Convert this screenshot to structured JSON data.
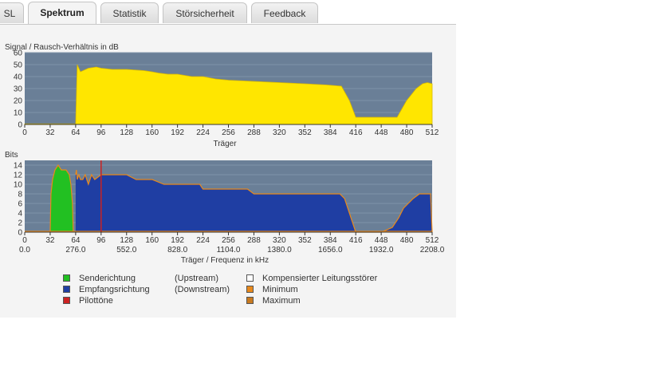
{
  "tabs": [
    {
      "label": "SL",
      "active": false
    },
    {
      "label": "Spektrum",
      "active": true
    },
    {
      "label": "Statistik",
      "active": false
    },
    {
      "label": "Störsicherheit",
      "active": false
    },
    {
      "label": "Feedback",
      "active": false
    }
  ],
  "colors": {
    "plot_bg": "#6a7f97",
    "snr_fill": "#ffe600",
    "upstream": "#22c022",
    "downstream": "#1f3ea3",
    "pilot": "#cc2222",
    "minimum": "#e8891c",
    "maximum": "#c87a20",
    "compensated": "#ffffff"
  },
  "chart_data": [
    {
      "type": "area",
      "title": "Signal / Rausch-Verhältnis in dB",
      "xlabel": "Träger",
      "ylabel": "",
      "xlim": [
        0,
        512
      ],
      "ylim": [
        0,
        60
      ],
      "x_ticks": [
        0,
        32,
        64,
        96,
        128,
        160,
        192,
        224,
        256,
        288,
        320,
        352,
        384,
        416,
        448,
        480,
        512
      ],
      "y_ticks": [
        0,
        10,
        20,
        30,
        40,
        50,
        60
      ],
      "series": [
        {
          "x": [
            0,
            63,
            64,
            66,
            70,
            80,
            90,
            96,
            110,
            128,
            150,
            160,
            168,
            180,
            192,
            210,
            224,
            240,
            256,
            288,
            320,
            352,
            380,
            398,
            408,
            416,
            448,
            468,
            480,
            492,
            500,
            506,
            512
          ],
          "values": [
            0.5,
            0.5,
            0,
            50,
            44,
            47,
            48,
            47,
            46,
            46,
            45,
            44,
            43,
            42,
            42,
            40,
            40,
            38,
            37,
            36,
            35,
            34,
            33,
            32,
            20,
            6,
            6,
            6,
            20,
            30,
            34,
            35,
            34
          ]
        }
      ]
    },
    {
      "type": "area",
      "title": "Bits",
      "xlabel": "Träger / Frequenz in kHz",
      "ylabel": "",
      "xlim": [
        0,
        512
      ],
      "ylim": [
        0,
        15
      ],
      "x_ticks": [
        0,
        32,
        64,
        96,
        128,
        160,
        192,
        224,
        256,
        288,
        320,
        352,
        384,
        416,
        448,
        480,
        512
      ],
      "freq_ticks": [
        "0.0",
        "276.0",
        "552.0",
        "828.0",
        "1104.0",
        "1380.0",
        "1656.0",
        "1932.0",
        "2208.0"
      ],
      "y_ticks": [
        0,
        2,
        4,
        6,
        8,
        10,
        12,
        14
      ],
      "pilot_tone": 96,
      "series": [
        {
          "name": "Senderichtung",
          "x": [
            32,
            33,
            35,
            38,
            42,
            46,
            52,
            56,
            58,
            60,
            61
          ],
          "values": [
            0,
            8,
            11,
            13,
            14,
            13,
            13,
            12,
            10,
            6,
            0
          ]
        },
        {
          "name": "Empfangsrichtung",
          "x": [
            64,
            65,
            66,
            68,
            70,
            73,
            76,
            80,
            84,
            88,
            96,
            110,
            128,
            140,
            150,
            160,
            175,
            192,
            220,
            224,
            232,
            256,
            280,
            288,
            300,
            320,
            330,
            352,
            380,
            396,
            402,
            408,
            416,
            448,
            462,
            470,
            476,
            482,
            488,
            496,
            500,
            504,
            506,
            508,
            510,
            512
          ],
          "values": [
            12,
            13,
            11,
            12,
            11,
            11,
            12,
            10,
            12,
            11,
            12,
            12,
            12,
            11,
            11,
            11,
            10,
            10,
            10,
            9,
            9,
            9,
            9,
            8,
            8,
            8,
            8,
            8,
            8,
            8,
            7,
            4,
            0,
            0,
            1,
            3,
            5,
            6,
            7,
            8,
            8,
            8,
            8,
            8,
            8,
            0
          ]
        }
      ]
    }
  ],
  "legend": {
    "upstream": "Senderichtung",
    "upstream_note": "(Upstream)",
    "downstream": "Empfangsrichtung",
    "downstream_note": "(Downstream)",
    "pilot": "Pilottöne",
    "compensated": "Kompensierter Leitungsstörer",
    "minimum": "Minimum",
    "maximum": "Maximum"
  }
}
